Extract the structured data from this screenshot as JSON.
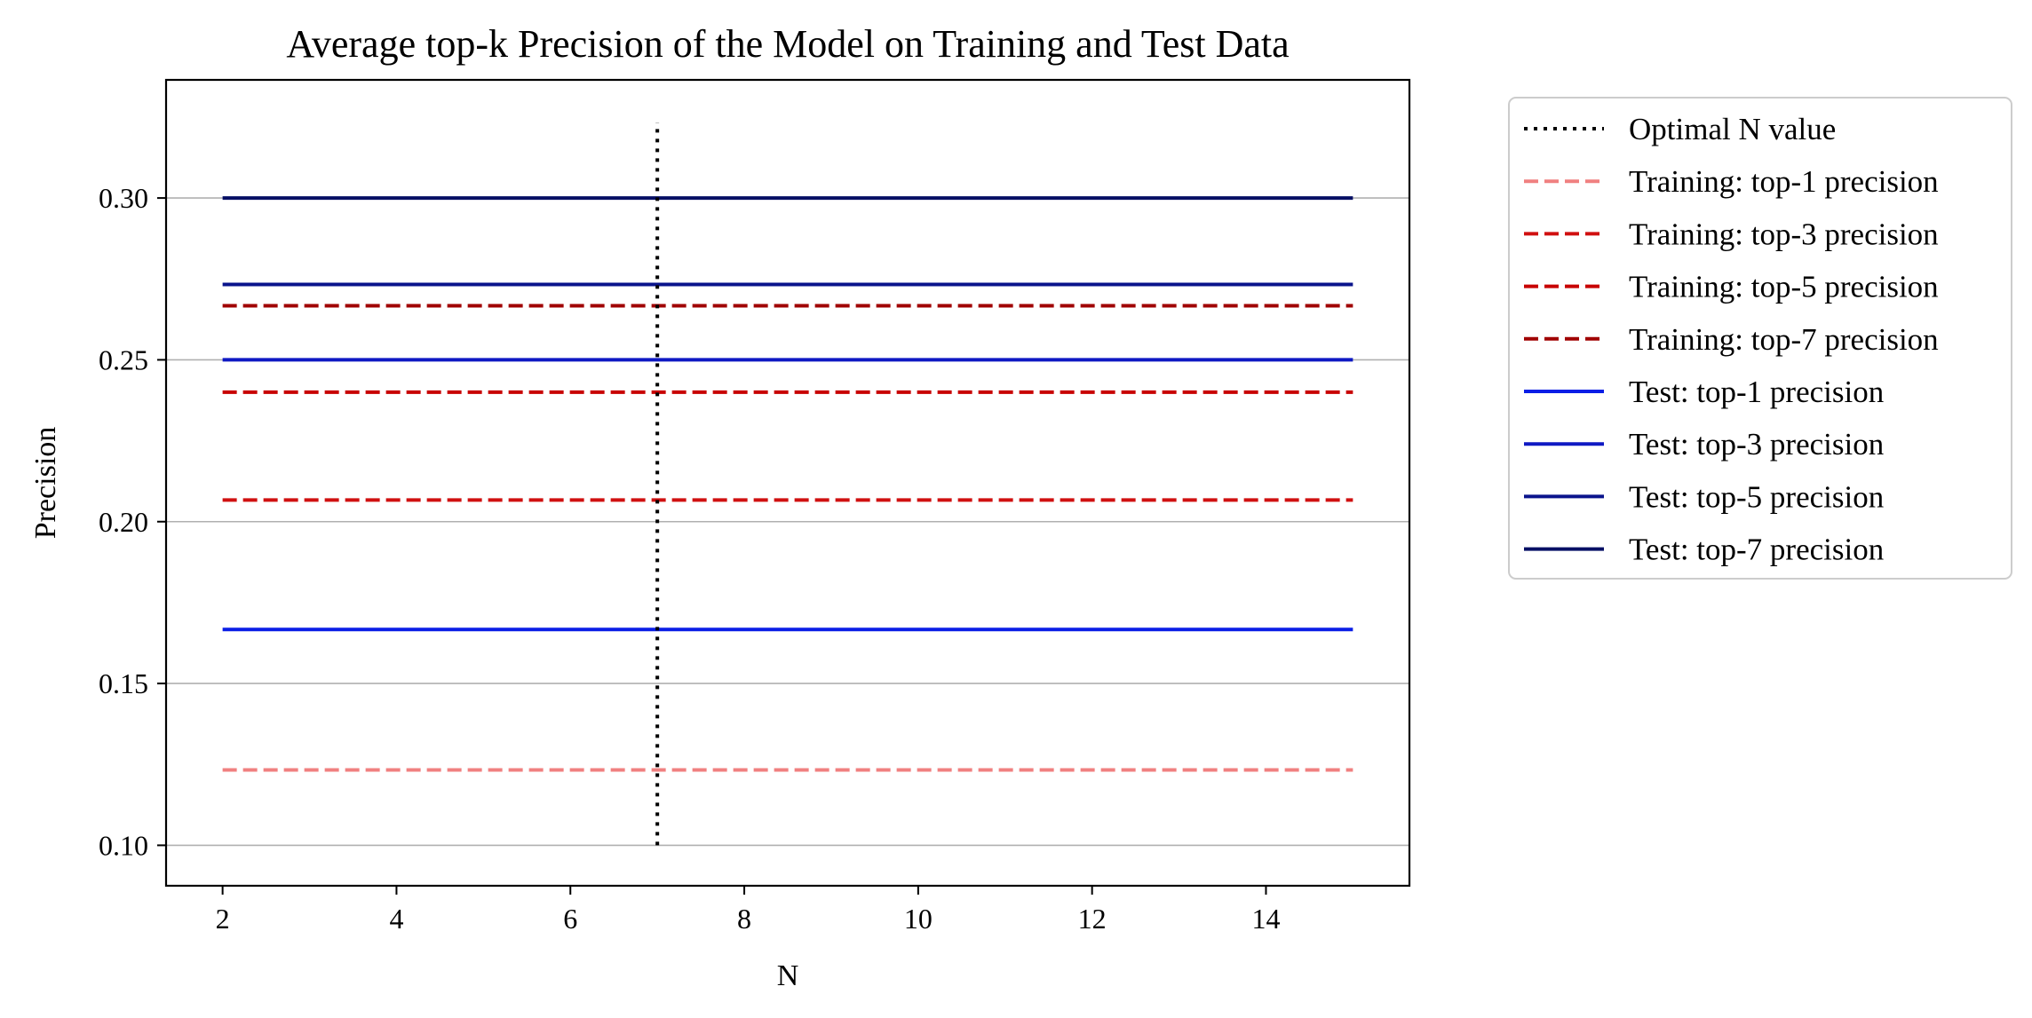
{
  "chart_data": {
    "type": "line",
    "title": "Average top-k Precision of the Model on Training and Test Data",
    "xlabel": "N",
    "ylabel": "Precision",
    "xlim": [
      1.35,
      15.65
    ],
    "ylim": [
      0.0875,
      0.3365
    ],
    "xticks": [
      2,
      4,
      6,
      8,
      10,
      12,
      14
    ],
    "yticks": [
      0.1,
      0.15,
      0.2,
      0.25,
      0.3
    ],
    "xtick_labels": [
      "2",
      "4",
      "6",
      "8",
      "10",
      "12",
      "14"
    ],
    "ytick_labels": [
      "0.10",
      "0.15",
      "0.20",
      "0.25",
      "0.30"
    ],
    "grid": "horizontal",
    "legend_position": "outside-right-top",
    "optimal_n": {
      "name": "Optimal N value",
      "x": 7,
      "y_range": [
        0.1,
        0.3233
      ],
      "color": "#000000",
      "style": "dotted"
    },
    "series": [
      {
        "name": "Training: top-1 precision",
        "x": [
          2,
          15
        ],
        "values": [
          0.1233,
          0.1233
        ],
        "color": "#f08080",
        "style": "dashed"
      },
      {
        "name": "Training: top-3 precision",
        "x": [
          2,
          15
        ],
        "values": [
          0.2067,
          0.2067
        ],
        "color": "#d01010",
        "style": "dashed"
      },
      {
        "name": "Training: top-5 precision",
        "x": [
          2,
          15
        ],
        "values": [
          0.24,
          0.24
        ],
        "color": "#c80000",
        "style": "dashed"
      },
      {
        "name": "Training: top-7 precision",
        "x": [
          2,
          15
        ],
        "values": [
          0.2667,
          0.2667
        ],
        "color": "#a00000",
        "style": "dashed"
      },
      {
        "name": "Test: top-1 precision",
        "x": [
          2,
          15
        ],
        "values": [
          0.1667,
          0.1667
        ],
        "color": "#0a1ee6",
        "style": "solid"
      },
      {
        "name": "Test: top-3 precision",
        "x": [
          2,
          15
        ],
        "values": [
          0.25,
          0.25
        ],
        "color": "#0f19c3",
        "style": "solid"
      },
      {
        "name": "Test: top-5 precision",
        "x": [
          2,
          15
        ],
        "values": [
          0.2733,
          0.2733
        ],
        "color": "#0a148c",
        "style": "solid"
      },
      {
        "name": "Test: top-7 precision",
        "x": [
          2,
          15
        ],
        "values": [
          0.3,
          0.3
        ],
        "color": "#050f64",
        "style": "solid"
      }
    ]
  }
}
